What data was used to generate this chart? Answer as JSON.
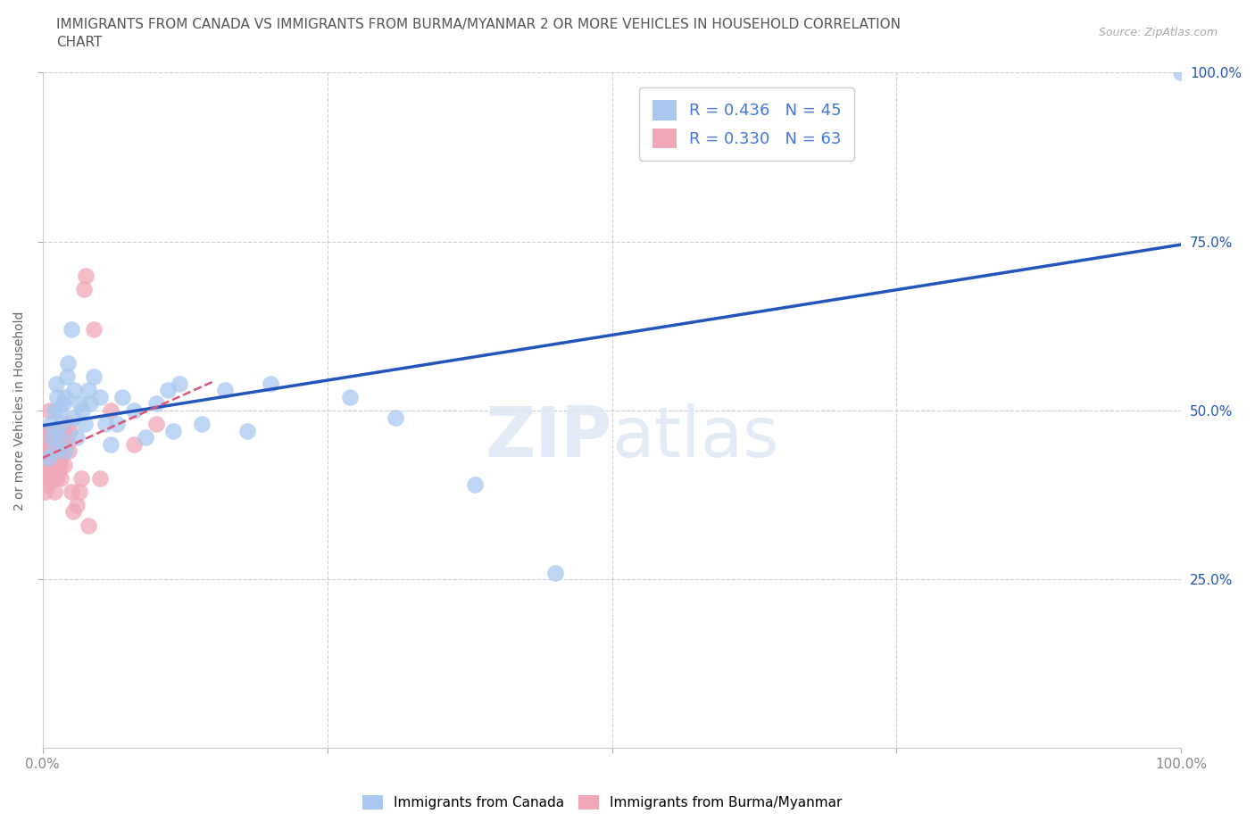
{
  "title_line1": "IMMIGRANTS FROM CANADA VS IMMIGRANTS FROM BURMA/MYANMAR 2 OR MORE VEHICLES IN HOUSEHOLD CORRELATION",
  "title_line2": "CHART",
  "source": "Source: ZipAtlas.com",
  "ylabel": "2 or more Vehicles in Household",
  "xlim": [
    0.0,
    1.0
  ],
  "ylim": [
    0.0,
    1.0
  ],
  "x_tick_labels": [
    "0.0%",
    "",
    "",
    "",
    "100.0%"
  ],
  "x_tick_vals": [
    0.0,
    0.25,
    0.5,
    0.75,
    1.0
  ],
  "y_tick_labels_right": [
    "100.0%",
    "75.0%",
    "50.0%",
    "25.0%"
  ],
  "y_tick_vals": [
    1.0,
    0.75,
    0.5,
    0.25
  ],
  "legend_labels": [
    "Immigrants from Canada",
    "Immigrants from Burma/Myanmar"
  ],
  "r_canada": 0.436,
  "n_canada": 45,
  "r_burma": 0.33,
  "n_burma": 63,
  "color_canada": "#a8c8f0",
  "color_burma": "#f0a8b8",
  "line_color_canada": "#2255bb",
  "line_color_burma": "#dd5577",
  "text_color_stats": "#4477dd",
  "background_color": "#ffffff",
  "grid_color": "#ccccdd",
  "canada_x": [
    0.005,
    0.007,
    0.008,
    0.01,
    0.01,
    0.012,
    0.013,
    0.015,
    0.015,
    0.017,
    0.018,
    0.02,
    0.02,
    0.021,
    0.022,
    0.025,
    0.027,
    0.028,
    0.03,
    0.032,
    0.035,
    0.037,
    0.04,
    0.042,
    0.045,
    0.05,
    0.055,
    0.06,
    0.065,
    0.07,
    0.08,
    0.09,
    0.1,
    0.11,
    0.115,
    0.12,
    0.14,
    0.16,
    0.18,
    0.2,
    0.27,
    0.31,
    0.38,
    0.45,
    1.0
  ],
  "canada_y": [
    0.43,
    0.48,
    0.46,
    0.44,
    0.5,
    0.54,
    0.52,
    0.46,
    0.5,
    0.48,
    0.51,
    0.44,
    0.52,
    0.55,
    0.57,
    0.62,
    0.49,
    0.53,
    0.46,
    0.51,
    0.5,
    0.48,
    0.53,
    0.51,
    0.55,
    0.52,
    0.48,
    0.45,
    0.48,
    0.52,
    0.5,
    0.46,
    0.51,
    0.53,
    0.47,
    0.54,
    0.48,
    0.53,
    0.47,
    0.54,
    0.52,
    0.49,
    0.39,
    0.26,
    1.0
  ],
  "burma_x": [
    0.0,
    0.001,
    0.001,
    0.002,
    0.002,
    0.002,
    0.003,
    0.003,
    0.003,
    0.004,
    0.004,
    0.004,
    0.005,
    0.005,
    0.005,
    0.006,
    0.006,
    0.006,
    0.007,
    0.007,
    0.008,
    0.008,
    0.008,
    0.009,
    0.009,
    0.01,
    0.01,
    0.01,
    0.01,
    0.011,
    0.011,
    0.012,
    0.012,
    0.013,
    0.013,
    0.014,
    0.014,
    0.015,
    0.015,
    0.016,
    0.016,
    0.017,
    0.018,
    0.018,
    0.019,
    0.02,
    0.021,
    0.022,
    0.023,
    0.024,
    0.025,
    0.027,
    0.03,
    0.032,
    0.034,
    0.036,
    0.038,
    0.04,
    0.045,
    0.05,
    0.06,
    0.08,
    0.1
  ],
  "burma_y": [
    0.44,
    0.43,
    0.46,
    0.38,
    0.42,
    0.45,
    0.41,
    0.44,
    0.47,
    0.39,
    0.42,
    0.46,
    0.4,
    0.43,
    0.46,
    0.44,
    0.47,
    0.5,
    0.42,
    0.45,
    0.4,
    0.44,
    0.47,
    0.43,
    0.46,
    0.38,
    0.41,
    0.44,
    0.47,
    0.42,
    0.45,
    0.4,
    0.44,
    0.43,
    0.46,
    0.41,
    0.44,
    0.42,
    0.45,
    0.4,
    0.43,
    0.46,
    0.44,
    0.47,
    0.42,
    0.45,
    0.46,
    0.48,
    0.44,
    0.47,
    0.38,
    0.35,
    0.36,
    0.38,
    0.4,
    0.68,
    0.7,
    0.33,
    0.62,
    0.4,
    0.5,
    0.45,
    0.48
  ]
}
